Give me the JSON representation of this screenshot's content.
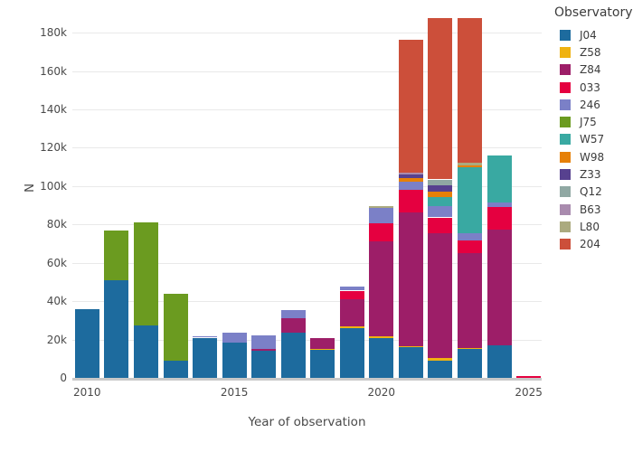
{
  "chart_data": {
    "type": "bar",
    "stacked": true,
    "xlabel": "Year of observation",
    "ylabel": "N",
    "legend_title": "Observatory",
    "legend_position": "top-right",
    "grid": true,
    "x": [
      2010,
      2011,
      2012,
      2013,
      2014,
      2015,
      2016,
      2017,
      2018,
      2019,
      2020,
      2021,
      2022,
      2023,
      2024,
      2025
    ],
    "xticks": {
      "values": [
        2010,
        2015,
        2020,
        2025
      ],
      "labels": [
        "2010",
        "2015",
        "2020",
        "2025"
      ]
    },
    "yticks": {
      "values": [
        0,
        20000,
        40000,
        60000,
        80000,
        100000,
        120000,
        140000,
        160000,
        180000
      ],
      "labels": [
        "0",
        "20k",
        "40k",
        "60k",
        "80k",
        "100k",
        "120k",
        "140k",
        "160k",
        "180k"
      ]
    },
    "ylim": [
      0,
      190000
    ],
    "series": [
      {
        "name": "J04",
        "color": "#1d6b9e",
        "values": [
          36000,
          51000,
          27500,
          9000,
          21000,
          18500,
          14000,
          23500,
          14500,
          26000,
          20800,
          16000,
          9000,
          15000,
          17000,
          0
        ]
      },
      {
        "name": "Z58",
        "color": "#efb211",
        "values": [
          0,
          0,
          0,
          0,
          0,
          0,
          0,
          0,
          800,
          1000,
          1000,
          500,
          1200,
          700,
          0,
          0
        ]
      },
      {
        "name": "Z84",
        "color": "#9d1e68",
        "values": [
          0,
          0,
          0,
          0,
          0,
          0,
          1000,
          7500,
          5500,
          14000,
          49500,
          70000,
          65500,
          49500,
          60500,
          0
        ]
      },
      {
        "name": "033",
        "color": "#e50040",
        "values": [
          0,
          0,
          0,
          0,
          0,
          0,
          0,
          0,
          0,
          4500,
          9200,
          11800,
          8000,
          6300,
          11800,
          800
        ]
      },
      {
        "name": "246",
        "color": "#7b80c7",
        "values": [
          0,
          0,
          0,
          0,
          500,
          5000,
          7000,
          4500,
          0,
          2000,
          8000,
          4000,
          6000,
          4000,
          2400,
          0
        ]
      },
      {
        "name": "J75",
        "color": "#6b9b20",
        "values": [
          0,
          26000,
          53500,
          35000,
          0,
          0,
          0,
          0,
          0,
          0,
          0,
          0,
          0,
          0,
          0,
          0
        ]
      },
      {
        "name": "W57",
        "color": "#39a9a2",
        "values": [
          0,
          0,
          0,
          0,
          0,
          0,
          0,
          0,
          0,
          0,
          0,
          0,
          4500,
          34500,
          24500,
          0
        ]
      },
      {
        "name": "W98",
        "color": "#e68008",
        "values": [
          0,
          0,
          0,
          0,
          0,
          0,
          0,
          0,
          0,
          0,
          0,
          1700,
          3000,
          1000,
          0,
          0
        ]
      },
      {
        "name": "Z33",
        "color": "#57418f",
        "values": [
          0,
          0,
          0,
          0,
          0,
          0,
          0,
          0,
          0,
          0,
          0,
          1900,
          3100,
          0,
          0,
          0
        ]
      },
      {
        "name": "Q12",
        "color": "#90a8a3",
        "values": [
          0,
          0,
          0,
          0,
          0,
          0,
          0,
          0,
          0,
          0,
          0,
          0,
          3200,
          0,
          0,
          0
        ]
      },
      {
        "name": "B63",
        "color": "#a98bae",
        "values": [
          0,
          0,
          0,
          0,
          0,
          0,
          0,
          0,
          0,
          0,
          0,
          1300,
          0,
          0,
          0,
          0
        ]
      },
      {
        "name": "L80",
        "color": "#abaa7f",
        "values": [
          0,
          0,
          0,
          0,
          0,
          0,
          0,
          0,
          0,
          0,
          1200,
          0,
          0,
          1200,
          0,
          0
        ]
      },
      {
        "name": "204",
        "color": "#cc4f3a",
        "values": [
          0,
          0,
          0,
          0,
          0,
          0,
          0,
          0,
          0,
          0,
          0,
          69000,
          84000,
          75500,
          0,
          0
        ]
      }
    ]
  }
}
